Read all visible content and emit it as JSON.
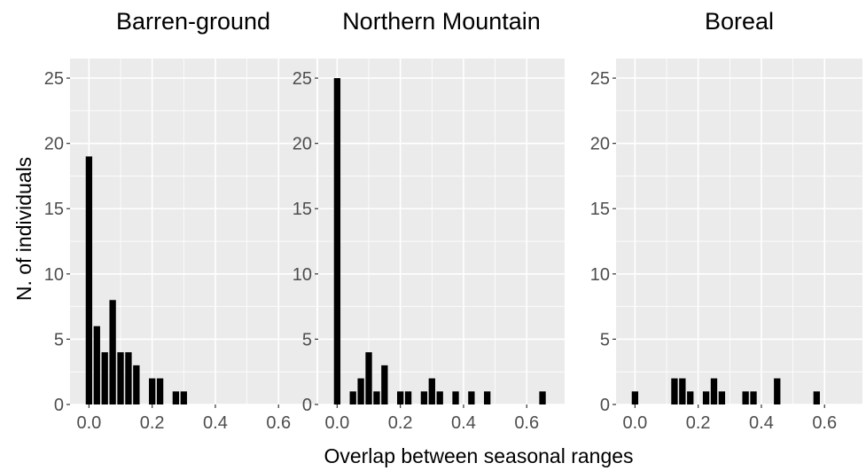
{
  "chart_data": {
    "type": "bar",
    "xlabel": "Overlap between seasonal ranges",
    "ylabel": "N. of individuals",
    "xlim": [
      -0.06,
      0.72
    ],
    "ylim": [
      0,
      26.5
    ],
    "bin_width": 0.025,
    "x_ticks": [
      "0.0",
      "0.2",
      "0.4",
      "0.6"
    ],
    "x_tick_values": [
      0,
      0.2,
      0.4,
      0.6
    ],
    "y_ticks": [
      "0",
      "5",
      "10",
      "15",
      "20",
      "25"
    ],
    "y_tick_values": [
      0,
      5,
      10,
      15,
      20,
      25
    ],
    "grid": true,
    "panels": [
      {
        "title": "Barren-ground",
        "x": [
          0.0,
          0.025,
          0.05,
          0.075,
          0.1,
          0.125,
          0.15,
          0.2,
          0.225,
          0.275,
          0.3
        ],
        "values": [
          19,
          6,
          4,
          8,
          4,
          4,
          3,
          2,
          2,
          1,
          1
        ]
      },
      {
        "title": "Northern Mountain",
        "x": [
          0.0,
          0.05,
          0.075,
          0.1,
          0.125,
          0.15,
          0.2,
          0.225,
          0.275,
          0.3,
          0.325,
          0.375,
          0.425,
          0.475,
          0.65
        ],
        "values": [
          25,
          1,
          2,
          4,
          1,
          3,
          1,
          1,
          1,
          2,
          1,
          1,
          1,
          1,
          1
        ]
      },
      {
        "title": "Boreal",
        "x": [
          0.0,
          0.125,
          0.15,
          0.175,
          0.225,
          0.25,
          0.275,
          0.35,
          0.375,
          0.45,
          0.575
        ],
        "values": [
          1,
          2,
          2,
          1,
          1,
          2,
          1,
          1,
          1,
          2,
          1
        ]
      }
    ]
  }
}
